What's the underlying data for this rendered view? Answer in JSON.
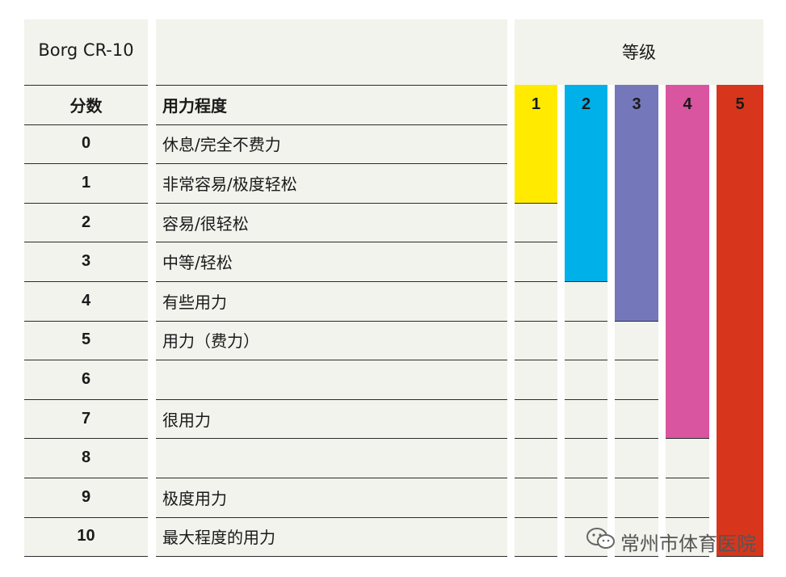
{
  "header": {
    "scale_title": "Borg CR-10",
    "grade_title": "等级"
  },
  "columns": {
    "score": "分数",
    "effort": "用力程度"
  },
  "rows": [
    {
      "score": "0",
      "effort": "休息/完全不费力"
    },
    {
      "score": "1",
      "effort": "非常容易/极度轻松"
    },
    {
      "score": "2",
      "effort": "容易/很轻松"
    },
    {
      "score": "3",
      "effort": "中等/轻松"
    },
    {
      "score": "4",
      "effort": "有些用力"
    },
    {
      "score": "5",
      "effort": "用力（费力）"
    },
    {
      "score": "6",
      "effort": ""
    },
    {
      "score": "7",
      "effort": "很用力"
    },
    {
      "score": "8",
      "effort": ""
    },
    {
      "score": "9",
      "effort": "极度用力"
    },
    {
      "score": "10",
      "effort": "最大程度的用力"
    }
  ],
  "levels": [
    {
      "label": "1",
      "color": "#ffea00",
      "covers_rows": 2
    },
    {
      "label": "2",
      "color": "#00b0e8",
      "covers_rows": 4
    },
    {
      "label": "3",
      "color": "#7478bb",
      "covers_rows": 5
    },
    {
      "label": "4",
      "color": "#d9559f",
      "covers_rows": 8
    },
    {
      "label": "5",
      "color": "#d7361c",
      "covers_rows": 11
    }
  ],
  "watermark": {
    "text": "常州市体育医院",
    "icon": "wechat-icon"
  }
}
